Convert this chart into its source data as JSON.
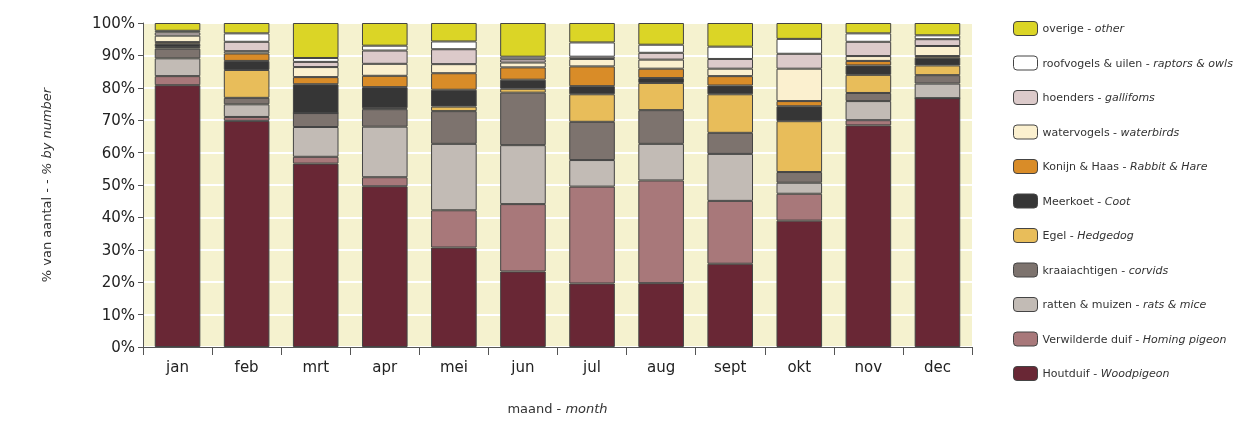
{
  "chart_data": {
    "type": "bar",
    "stacked": true,
    "xlabel": "maand - month",
    "ylabel": "% van aantal - - % by number",
    "categories": [
      "jan",
      "feb",
      "mrt",
      "apr",
      "mei",
      "jun",
      "jul",
      "aug",
      "sept",
      "okt",
      "nov",
      "dec"
    ],
    "ylim": [
      0,
      100
    ],
    "yticks": [
      {
        "value": 0,
        "label": "0%"
      },
      {
        "value": 10,
        "label": "10%"
      },
      {
        "value": 20,
        "label": "20%"
      },
      {
        "value": 30,
        "label": "30%"
      },
      {
        "value": 40,
        "label": "40%"
      },
      {
        "value": 50,
        "label": "50%"
      },
      {
        "value": 60,
        "label": "60%"
      },
      {
        "value": 70,
        "label": "70%"
      },
      {
        "value": 80,
        "label": "80%"
      },
      {
        "value": 90,
        "label": "90%"
      },
      {
        "value": 100,
        "label": "100%"
      }
    ],
    "grid": "y",
    "legend": "right",
    "series": [
      {
        "name": "Houtduif - Woodpigeon",
        "color": "#692735",
        "values": [
          80.8,
          69.8,
          56.6,
          49.6,
          30.7,
          23.3,
          19.6,
          19.7,
          25.7,
          39.0,
          68.4,
          76.8
        ]
      },
      {
        "name": "Verwilderde duif - Homing pigeon",
        "color": "#a8787a",
        "values": [
          2.8,
          1.2,
          2.1,
          2.8,
          11.5,
          20.8,
          29.9,
          31.7,
          19.4,
          8.3,
          1.6,
          0
        ]
      },
      {
        "name": "ratten & muizen - rats & mice",
        "color": "#c2bbb5",
        "values": [
          5.5,
          3.9,
          9.2,
          15.6,
          20.5,
          18.2,
          8.2,
          11.3,
          14.5,
          3.4,
          5.9,
          4.5
        ]
      },
      {
        "name": "kraaiachtigen - corvids",
        "color": "#7d736e",
        "values": [
          3.0,
          2.0,
          4.3,
          5.4,
          10.1,
          16.2,
          11.8,
          10.4,
          6.5,
          3.3,
          2.5,
          2.6
        ]
      },
      {
        "name": "Egel - Hedgedog",
        "color": "#e8bd5a",
        "values": [
          0.5,
          8.6,
          0,
          0.3,
          1.4,
          1.2,
          8.5,
          8.4,
          11.9,
          15.7,
          5.6,
          3.0
        ]
      },
      {
        "name": "Meerkoet - Coot",
        "color": "#363636",
        "values": [
          1.0,
          2.8,
          8.9,
          6.5,
          5.2,
          2.8,
          2.5,
          1.5,
          2.7,
          4.6,
          2.9,
          2.4
        ]
      },
      {
        "name": "Konijn & Haas - Rabbit & Hare",
        "color": "#d98c28",
        "values": [
          0.5,
          2.3,
          2.2,
          3.5,
          5.1,
          3.8,
          6.1,
          2.9,
          2.9,
          1.6,
          1.4,
          0.5
        ]
      },
      {
        "name": "watervogels - waterbirds",
        "color": "#fbf0cf",
        "values": [
          2.0,
          0.7,
          3.1,
          3.7,
          2.8,
          1.5,
          2.3,
          2.8,
          2.3,
          10.0,
          1.5,
          3.1
        ]
      },
      {
        "name": "hoenders - gallifoms",
        "color": "#dccaca",
        "values": [
          1.0,
          2.9,
          1.6,
          4.1,
          4.6,
          1.0,
          0.7,
          2.1,
          3.0,
          4.6,
          4.4,
          2.1
        ]
      },
      {
        "name": "roofvogels & uilen - raptors & owls",
        "color": "#ffffff",
        "values": [
          0.5,
          2.6,
          1.2,
          1.5,
          2.4,
          0.8,
          4.4,
          2.5,
          3.8,
          4.6,
          2.6,
          1.2
        ]
      },
      {
        "name": "overige - other",
        "color": "#dbd526",
        "values": [
          2.4,
          3.2,
          10.8,
          7.0,
          5.7,
          10.4,
          6.0,
          6.7,
          7.3,
          4.9,
          3.2,
          3.8
        ]
      }
    ]
  }
}
